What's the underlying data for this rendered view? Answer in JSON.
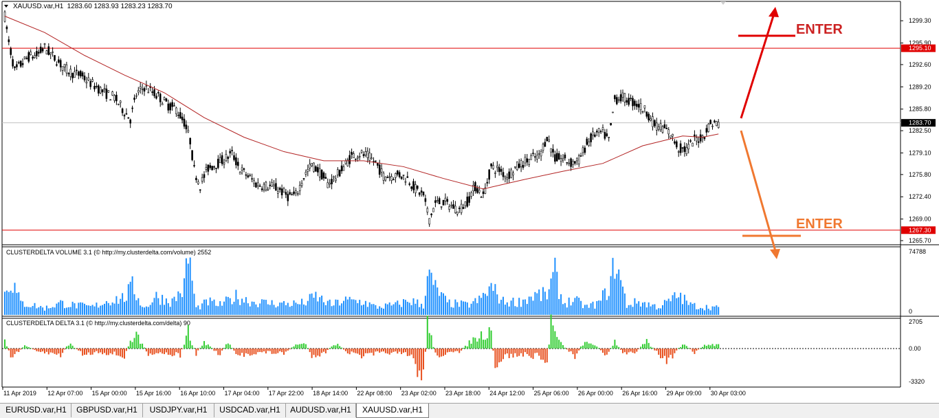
{
  "window": {
    "symbol_title": "XAUUSD.var,H1",
    "ohlc_text": "1283.60 1283.93 1283.23 1283.70"
  },
  "indicators": {
    "volume": {
      "label": "CLUSTERDELTA VOLUME 3.1 (© http://my.clusterdelta.com/volume) 2552",
      "axis_max": "74788",
      "axis_min": "0"
    },
    "delta": {
      "label": "CLUSTERDELTA DELTA 3.1 (© http://my.clusterdelta.com/delta) 90",
      "axis_max": "2705",
      "axis_zero": "0.00",
      "axis_min": "-3320"
    }
  },
  "price_axis": {
    "ticks": [
      "1299.30",
      "1295.90",
      "1292.60",
      "1289.20",
      "1285.80",
      "1282.50",
      "1279.10",
      "1275.80",
      "1272.40",
      "1269.00",
      "1265.70"
    ],
    "marker_upper": "1295.10",
    "marker_current": "1283.70",
    "marker_lower": "1267.30"
  },
  "time_axis": [
    "11 Apr 2019",
    "12 Apr 07:00",
    "15 Apr 00:00",
    "15 Apr 16:00",
    "16 Apr 10:00",
    "17 Apr 04:00",
    "17 Apr 22:00",
    "18 Apr 14:00",
    "22 Apr 08:00",
    "23 Apr 02:00",
    "23 Apr 18:00",
    "24 Apr 12:00",
    "25 Apr 06:00",
    "26 Apr 00:00",
    "26 Apr 16:00",
    "29 Apr 09:00",
    "30 Apr 03:00"
  ],
  "annotations": {
    "enter_upper": "ENTER",
    "enter_lower": "ENTER"
  },
  "colors": {
    "bull_delta": "#32cd32",
    "bear_delta": "#e8501e",
    "volume": "#1e90ff",
    "ma": "#b22222",
    "level_line": "#e00000",
    "arrow_up": "#e00000",
    "arrow_down": "#f07830",
    "enter_upper": "#cc2222",
    "enter_lower": "#f07830"
  },
  "tabs": [
    {
      "label": "EURUSD.var,H1",
      "active": false
    },
    {
      "label": "GBPUSD.var,H1",
      "active": false
    },
    {
      "label": "USDJPY.var,H1",
      "active": false
    },
    {
      "label": "USDCAD.var,H1",
      "active": false
    },
    {
      "label": "AUDUSD.var,H1",
      "active": false
    },
    {
      "label": "XAUUSD.var,H1",
      "active": true
    }
  ],
  "chart_data": {
    "type": "candlestick",
    "symbol": "XAUUSD.var",
    "timeframe": "H1",
    "ylim": [
      1265.7,
      1301.0
    ],
    "horizontal_levels": [
      1295.1,
      1267.3
    ],
    "current_price": 1283.7,
    "price_path": [
      [
        0,
        1300.0
      ],
      [
        2,
        1296.0
      ],
      [
        5,
        1291.6
      ],
      [
        8,
        1292.6
      ],
      [
        12,
        1293.8
      ],
      [
        16,
        1294.0
      ],
      [
        20,
        1295.2
      ],
      [
        25,
        1293.6
      ],
      [
        30,
        1292.0
      ],
      [
        34,
        1291.3
      ],
      [
        38,
        1291.0
      ],
      [
        42,
        1290.0
      ],
      [
        46,
        1289.2
      ],
      [
        50,
        1288.3
      ],
      [
        55,
        1287.6
      ],
      [
        60,
        1285.4
      ],
      [
        63,
        1284.3
      ],
      [
        66,
        1288.0
      ],
      [
        70,
        1289.2
      ],
      [
        74,
        1288.4
      ],
      [
        78,
        1287.5
      ],
      [
        82,
        1286.4
      ],
      [
        86,
        1285.8
      ],
      [
        90,
        1283.8
      ],
      [
        93,
        1281.0
      ],
      [
        95,
        1276.5
      ],
      [
        98,
        1274.2
      ],
      [
        102,
        1276.8
      ],
      [
        106,
        1277.4
      ],
      [
        110,
        1278.1
      ],
      [
        114,
        1279.0
      ],
      [
        118,
        1276.6
      ],
      [
        122,
        1275.6
      ],
      [
        126,
        1274.4
      ],
      [
        130,
        1274.1
      ],
      [
        134,
        1274.0
      ],
      [
        138,
        1273.4
      ],
      [
        142,
        1272.5
      ],
      [
        146,
        1272.6
      ],
      [
        150,
        1275.5
      ],
      [
        154,
        1277.3
      ],
      [
        158,
        1276.2
      ],
      [
        162,
        1274.4
      ],
      [
        166,
        1275.4
      ],
      [
        170,
        1277.0
      ],
      [
        174,
        1278.6
      ],
      [
        178,
        1279.0
      ],
      [
        182,
        1278.6
      ],
      [
        186,
        1277.6
      ],
      [
        190,
        1275.6
      ],
      [
        194,
        1275.6
      ],
      [
        198,
        1275.8
      ],
      [
        202,
        1275.2
      ],
      [
        206,
        1273.6
      ],
      [
        210,
        1272.6
      ],
      [
        213,
        1269.0
      ],
      [
        216,
        1271.4
      ],
      [
        220,
        1271.6
      ],
      [
        224,
        1271.0
      ],
      [
        228,
        1270.4
      ],
      [
        232,
        1271.7
      ],
      [
        236,
        1274.0
      ],
      [
        240,
        1272.5
      ],
      [
        244,
        1276.9
      ],
      [
        248,
        1276.5
      ],
      [
        252,
        1275.5
      ],
      [
        256,
        1276.8
      ],
      [
        260,
        1277.6
      ],
      [
        264,
        1278.3
      ],
      [
        268,
        1278.5
      ],
      [
        272,
        1281.6
      ],
      [
        276,
        1278.3
      ],
      [
        280,
        1278.2
      ],
      [
        284,
        1277.6
      ],
      [
        288,
        1278.0
      ],
      [
        292,
        1280.5
      ],
      [
        296,
        1282.0
      ],
      [
        300,
        1282.2
      ],
      [
        303,
        1281.0
      ],
      [
        306,
        1287.3
      ],
      [
        310,
        1287.6
      ],
      [
        314,
        1287.0
      ],
      [
        318,
        1286.4
      ],
      [
        322,
        1285.4
      ],
      [
        326,
        1283.4
      ],
      [
        330,
        1283.0
      ],
      [
        334,
        1282.0
      ],
      [
        338,
        1279.8
      ],
      [
        342,
        1279.6
      ],
      [
        346,
        1281.1
      ],
      [
        350,
        1281.5
      ],
      [
        354,
        1283.6
      ],
      [
        358,
        1283.7
      ]
    ],
    "ma_path": [
      [
        0,
        1300.0
      ],
      [
        20,
        1297.5
      ],
      [
        40,
        1294.0
      ],
      [
        60,
        1291.0
      ],
      [
        80,
        1288.3
      ],
      [
        100,
        1284.5
      ],
      [
        120,
        1281.5
      ],
      [
        140,
        1279.3
      ],
      [
        160,
        1277.9
      ],
      [
        180,
        1277.9
      ],
      [
        200,
        1277.0
      ],
      [
        220,
        1275.2
      ],
      [
        240,
        1273.6
      ],
      [
        260,
        1275.0
      ],
      [
        280,
        1276.3
      ],
      [
        300,
        1277.5
      ],
      [
        320,
        1280.2
      ],
      [
        340,
        1281.7
      ],
      [
        350,
        1281.5
      ],
      [
        358,
        1282.0
      ]
    ],
    "volume_series": [
      [
        0,
        32
      ],
      [
        3,
        55
      ],
      [
        8,
        18
      ],
      [
        14,
        15
      ],
      [
        20,
        10
      ],
      [
        28,
        18
      ],
      [
        34,
        15
      ],
      [
        44,
        12
      ],
      [
        52,
        22
      ],
      [
        60,
        26
      ],
      [
        64,
        42
      ],
      [
        70,
        10
      ],
      [
        76,
        28
      ],
      [
        84,
        20
      ],
      [
        90,
        42
      ],
      [
        92,
        95
      ],
      [
        96,
        10
      ],
      [
        102,
        20
      ],
      [
        108,
        15
      ],
      [
        116,
        28
      ],
      [
        124,
        20
      ],
      [
        132,
        18
      ],
      [
        138,
        17
      ],
      [
        144,
        17
      ],
      [
        150,
        18
      ],
      [
        156,
        28
      ],
      [
        164,
        15
      ],
      [
        170,
        22
      ],
      [
        180,
        20
      ],
      [
        186,
        12
      ],
      [
        196,
        15
      ],
      [
        203,
        22
      ],
      [
        210,
        15
      ],
      [
        212,
        62
      ],
      [
        216,
        40
      ],
      [
        222,
        18
      ],
      [
        232,
        15
      ],
      [
        238,
        22
      ],
      [
        244,
        42
      ],
      [
        250,
        20
      ],
      [
        258,
        20
      ],
      [
        266,
        30
      ],
      [
        272,
        30
      ],
      [
        276,
        62
      ],
      [
        280,
        18
      ],
      [
        286,
        22
      ],
      [
        292,
        12
      ],
      [
        298,
        18
      ],
      [
        304,
        46
      ],
      [
        306,
        85
      ],
      [
        312,
        15
      ],
      [
        318,
        20
      ],
      [
        328,
        12
      ],
      [
        334,
        22
      ],
      [
        338,
        30
      ],
      [
        344,
        15
      ],
      [
        350,
        12
      ],
      [
        355,
        12
      ],
      [
        358,
        10
      ]
    ],
    "delta_series": [
      [
        0,
        12
      ],
      [
        3,
        -10
      ],
      [
        6,
        -8
      ],
      [
        10,
        5
      ],
      [
        16,
        -5
      ],
      [
        20,
        -6
      ],
      [
        28,
        -10
      ],
      [
        32,
        8
      ],
      [
        40,
        -10
      ],
      [
        46,
        -5
      ],
      [
        54,
        -8
      ],
      [
        60,
        -12
      ],
      [
        64,
        18
      ],
      [
        66,
        22
      ],
      [
        72,
        -8
      ],
      [
        78,
        -6
      ],
      [
        88,
        -10
      ],
      [
        92,
        26
      ],
      [
        96,
        -8
      ],
      [
        100,
        10
      ],
      [
        108,
        -10
      ],
      [
        112,
        12
      ],
      [
        116,
        -12
      ],
      [
        122,
        -8
      ],
      [
        128,
        -6
      ],
      [
        134,
        -6
      ],
      [
        140,
        -8
      ],
      [
        146,
        6
      ],
      [
        150,
        10
      ],
      [
        154,
        -10
      ],
      [
        160,
        -8
      ],
      [
        166,
        8
      ],
      [
        172,
        -6
      ],
      [
        180,
        -12
      ],
      [
        186,
        -8
      ],
      [
        192,
        -6
      ],
      [
        198,
        -8
      ],
      [
        204,
        -12
      ],
      [
        210,
        -50
      ],
      [
        212,
        40
      ],
      [
        216,
        -10
      ],
      [
        222,
        -8
      ],
      [
        228,
        -6
      ],
      [
        234,
        12
      ],
      [
        240,
        22
      ],
      [
        244,
        30
      ],
      [
        246,
        -40
      ],
      [
        250,
        -12
      ],
      [
        256,
        -10
      ],
      [
        262,
        -10
      ],
      [
        268,
        -12
      ],
      [
        272,
        -22
      ],
      [
        274,
        40
      ],
      [
        278,
        10
      ],
      [
        286,
        -12
      ],
      [
        290,
        8
      ],
      [
        296,
        6
      ],
      [
        302,
        -10
      ],
      [
        306,
        12
      ],
      [
        310,
        -8
      ],
      [
        316,
        -6
      ],
      [
        322,
        10
      ],
      [
        328,
        -8
      ],
      [
        332,
        -22
      ],
      [
        336,
        -8
      ],
      [
        340,
        8
      ],
      [
        346,
        -6
      ],
      [
        352,
        6
      ],
      [
        358,
        6
      ]
    ]
  }
}
